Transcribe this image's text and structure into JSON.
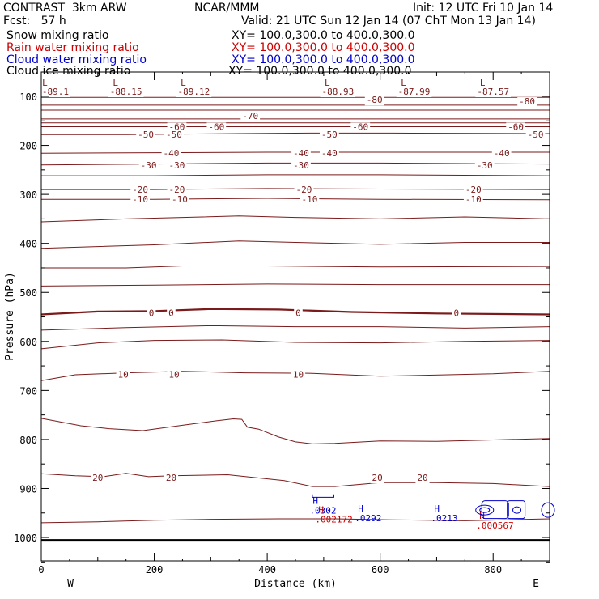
{
  "header": {
    "title_left": "CONTRAST  3km ARW",
    "title_center": "NCAR/MMM",
    "init": "Init: 12 UTC Fri 10 Jan 14",
    "fcst": "Fcst:   57 h",
    "valid": "Valid: 21 UTC Sun 12 Jan 14 (07 ChT Mon 13 Jan 14)"
  },
  "fields": [
    {
      "name": "Snow mixing ratio",
      "xy": "XY= 100.0,300.0 to 400.0,300.0",
      "color": "#000000"
    },
    {
      "name": "Rain water mixing ratio",
      "xy": "XY= 100.0,300.0 to 400.0,300.0",
      "color": "#cc0000"
    },
    {
      "name": "Cloud water mixing ratio",
      "xy": "XY= 100.0,300.0 to 400.0,300.0",
      "color": "#0000cc"
    },
    {
      "name": "Cloud ice mixing ratio",
      "xy": "XY= 100.0,300.0 to 400.0,300.0",
      "color": "#000000"
    }
  ],
  "chart_data": {
    "type": "contour cross-section",
    "xlabel": "Distance (km)",
    "ylabel": "Pressure (hPa)",
    "xlim": [
      0,
      900
    ],
    "ylim": [
      1050,
      50
    ],
    "x_ticks": [
      0,
      200,
      400,
      600,
      800
    ],
    "y_ticks": [
      100,
      200,
      300,
      400,
      500,
      600,
      700,
      800,
      900,
      1000
    ],
    "x_end_labels": {
      "left": "W",
      "right": "E"
    },
    "contour_color": "#7a1a1a",
    "isotherms": [
      {
        "level": -60,
        "labels": [
          {
            "x": 240,
            "text": "-60"
          },
          {
            "x": 310,
            "text": "-60"
          },
          {
            "x": 565,
            "text": "-60"
          },
          {
            "x": 840,
            "text": "-60"
          }
        ]
      },
      {
        "level": -50,
        "labels": [
          {
            "x": 185,
            "text": "-50"
          },
          {
            "x": 235,
            "text": "-50"
          },
          {
            "x": 510,
            "text": "-50"
          },
          {
            "x": 875,
            "text": "-50"
          }
        ]
      },
      {
        "level": -40,
        "labels": [
          {
            "x": 230,
            "text": "-40"
          },
          {
            "x": 460,
            "text": "-40"
          },
          {
            "x": 510,
            "text": "-40"
          },
          {
            "x": 815,
            "text": "-40"
          }
        ]
      },
      {
        "level": -30,
        "labels": [
          {
            "x": 190,
            "text": "-30"
          },
          {
            "x": 240,
            "text": "-30"
          },
          {
            "x": 460,
            "text": "-30"
          },
          {
            "x": 785,
            "text": "-30"
          }
        ]
      },
      {
        "level": -20,
        "labels": [
          {
            "x": 175,
            "text": "-20"
          },
          {
            "x": 240,
            "text": "-20"
          },
          {
            "x": 465,
            "text": "-20"
          },
          {
            "x": 765,
            "text": "-20"
          }
        ]
      },
      {
        "level": -10,
        "labels": [
          {
            "x": 175,
            "text": "-10"
          },
          {
            "x": 245,
            "text": "-10"
          },
          {
            "x": 475,
            "text": "-10"
          },
          {
            "x": 765,
            "text": "-10"
          }
        ]
      },
      {
        "level": 0,
        "labels": [
          {
            "x": 195,
            "text": "0"
          },
          {
            "x": 230,
            "text": "0"
          },
          {
            "x": 455,
            "text": "0"
          },
          {
            "x": 735,
            "text": "0"
          }
        ]
      },
      {
        "level": 10,
        "labels": [
          {
            "x": 145,
            "text": "10"
          },
          {
            "x": 235,
            "text": "10"
          },
          {
            "x": 455,
            "text": "10"
          }
        ]
      },
      {
        "level": 20,
        "labels": [
          {
            "x": 100,
            "text": "20"
          },
          {
            "x": 230,
            "text": "20"
          },
          {
            "x": 595,
            "text": "20"
          },
          {
            "x": 675,
            "text": "20"
          }
        ]
      }
    ],
    "upper_contours": [
      {
        "x": 25,
        "text": "-89.1",
        "L": "L"
      },
      {
        "x": 150,
        "text": "-88.15",
        "L": "L"
      },
      {
        "x": 270,
        "text": "-89.12",
        "L": "L"
      },
      {
        "x": 525,
        "text": "-88.93",
        "L": "L"
      },
      {
        "x": 660,
        "text": "-87.99",
        "L": "L"
      },
      {
        "x": 800,
        "text": "-87.57",
        "L": "L"
      }
    ],
    "upper_labels": [
      {
        "x": 590,
        "p": 107,
        "text": "-80"
      },
      {
        "x": 860,
        "p": 110,
        "text": "-80"
      },
      {
        "x": 370,
        "p": 140,
        "text": "-70"
      }
    ],
    "maxima": [
      {
        "x": 495,
        "p": 945,
        "H": "H",
        "value": ".0302",
        "color": "#0000cc"
      },
      {
        "x": 505,
        "p": 963,
        "H": "H",
        "value": ".002172",
        "color": "#cc0000"
      },
      {
        "x": 575,
        "p": 960,
        "H": "H",
        "value": ".0292",
        "color": "#0000cc"
      },
      {
        "x": 710,
        "p": 960,
        "H": "H",
        "value": ".0213",
        "color": "#0000cc"
      },
      {
        "x": 790,
        "p": 975,
        "H": "H",
        "value": ".000567",
        "color": "#cc0000"
      }
    ]
  }
}
